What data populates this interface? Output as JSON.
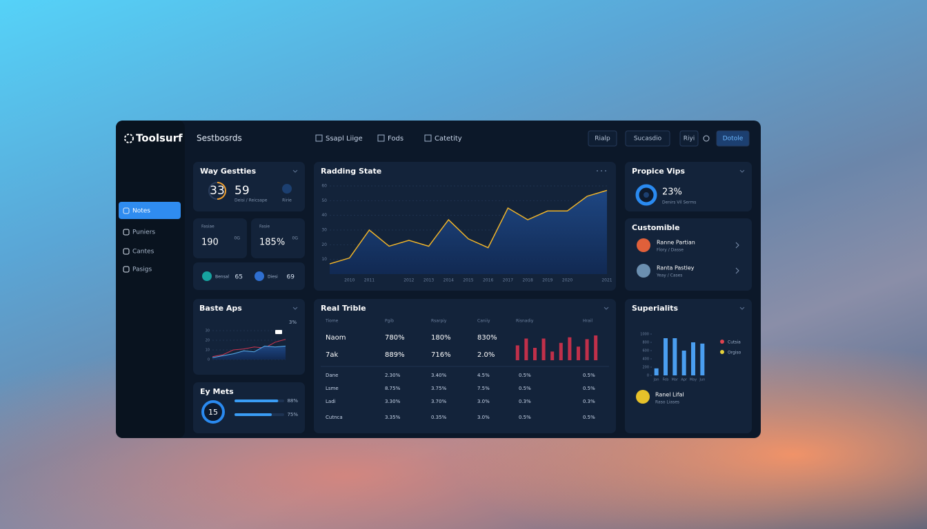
{
  "header": {
    "brand": "Toolsurf",
    "section": "Sestbosrds",
    "menus": [
      "Ssapl Liige",
      "Fods",
      "Catetity"
    ],
    "buttons": [
      "Rialp",
      "Sucasdio",
      "Riyi",
      "Dotole"
    ]
  },
  "sidebar": {
    "items": [
      "Notes",
      "Puniers",
      "Cantes",
      "Pasigs"
    ],
    "active": 0
  },
  "way": {
    "title": "Way Gestties",
    "stat_a": "33",
    "stat_b": "59",
    "sub_a": "Deisi / Reicsape",
    "sub_b": "Ririe",
    "cards": [
      {
        "label": "Fasiae",
        "value": "190",
        "tag": "0G"
      },
      {
        "label": "Fasie",
        "value": "185%",
        "tag": "0G"
      }
    ],
    "chips": [
      {
        "label": "Bensal",
        "value": "65"
      },
      {
        "label": "Diesi",
        "value": "69"
      }
    ]
  },
  "trend": {
    "type": "line",
    "title": "Radding State",
    "color": "#f0b429",
    "categories": [
      null,
      "2010",
      "2011",
      null,
      "2012",
      "2013",
      "2014",
      "2015",
      "2016",
      "2017",
      "2018",
      "2019",
      "2020",
      null,
      "2021"
    ],
    "values": [
      7,
      11,
      30,
      19,
      23,
      19,
      37,
      24,
      18,
      45,
      37,
      43,
      43,
      53,
      57
    ],
    "ylim": [
      0,
      60
    ],
    "yticks": [
      10,
      20,
      30,
      40,
      50,
      60
    ],
    "grid": true
  },
  "baste": {
    "type": "line",
    "title": "Baste Aps",
    "label": "3%",
    "ylim": [
      0,
      30
    ],
    "yticks": [
      0,
      10,
      20,
      30
    ],
    "series": [
      {
        "color": "#d0344f",
        "values": [
          3,
          5,
          10,
          11,
          13,
          12,
          18,
          21
        ]
      },
      {
        "color": "#5ab0f0",
        "values": [
          2,
          4,
          6,
          9,
          8,
          14,
          13,
          14
        ]
      }
    ]
  },
  "metrics": {
    "title": "Ey Mets",
    "center": "15",
    "values": [
      88,
      75
    ],
    "value_labels": [
      "88%",
      "75%"
    ]
  },
  "table": {
    "title": "Real Trible",
    "columns": [
      "Tiome",
      "Pgib",
      "Rsarpiy",
      "Caniiy",
      "Risnadiy",
      "Hrail"
    ],
    "top_rows": [
      [
        "Naom",
        "780%",
        "180%",
        "830%"
      ],
      [
        "7ak",
        "889%",
        "716%",
        "2.0%"
      ]
    ],
    "rows": [
      [
        "Dane",
        "2.30%",
        "3.40%",
        "4.5%",
        "0.5%",
        "0.5%"
      ],
      [
        "Lsme",
        "8.75%",
        "3.75%",
        "7.5%",
        "0.5%",
        "0.5%"
      ],
      [
        "Ladi",
        "3.30%",
        "3.70%",
        "3.0%",
        "0.3%",
        "0.3%"
      ],
      [
        "Cutnca",
        "3.35%",
        "0.35%",
        "3.0%",
        "0.5%",
        "0.5%"
      ]
    ],
    "bars": {
      "type": "bar",
      "color": "#c0304a",
      "ylim": [
        0,
        50
      ],
      "values": [
        24,
        35,
        20,
        35,
        14,
        28,
        37,
        22,
        34,
        40
      ]
    }
  },
  "propice": {
    "title": "Propice Vips",
    "value": "23%",
    "sub": "Denirs Vil Serms"
  },
  "custom": {
    "title": "Customible",
    "people": [
      {
        "name": "Ranne Partian",
        "sub": "Flory / Dasse"
      },
      {
        "name": "Ranta Pastley",
        "sub": "Yeay / Cases"
      }
    ]
  },
  "super": {
    "type": "bar",
    "title": "Superialits",
    "color": "#4a9ef0",
    "categories": [
      "Jan",
      "Feb",
      "Mar",
      "Apr",
      "May",
      "Jun"
    ],
    "values": [
      170,
      900,
      900,
      600,
      800,
      770
    ],
    "ylim": [
      0,
      1000
    ],
    "yticks": [
      0,
      200,
      400,
      600,
      800,
      1000
    ],
    "legend": [
      {
        "name": "Cutsia",
        "color": "#e0434f"
      },
      {
        "name": "Orgiso",
        "color": "#e6d23a"
      }
    ],
    "person": {
      "name": "Ranel Lifal",
      "sub": "Raso Liases"
    }
  }
}
